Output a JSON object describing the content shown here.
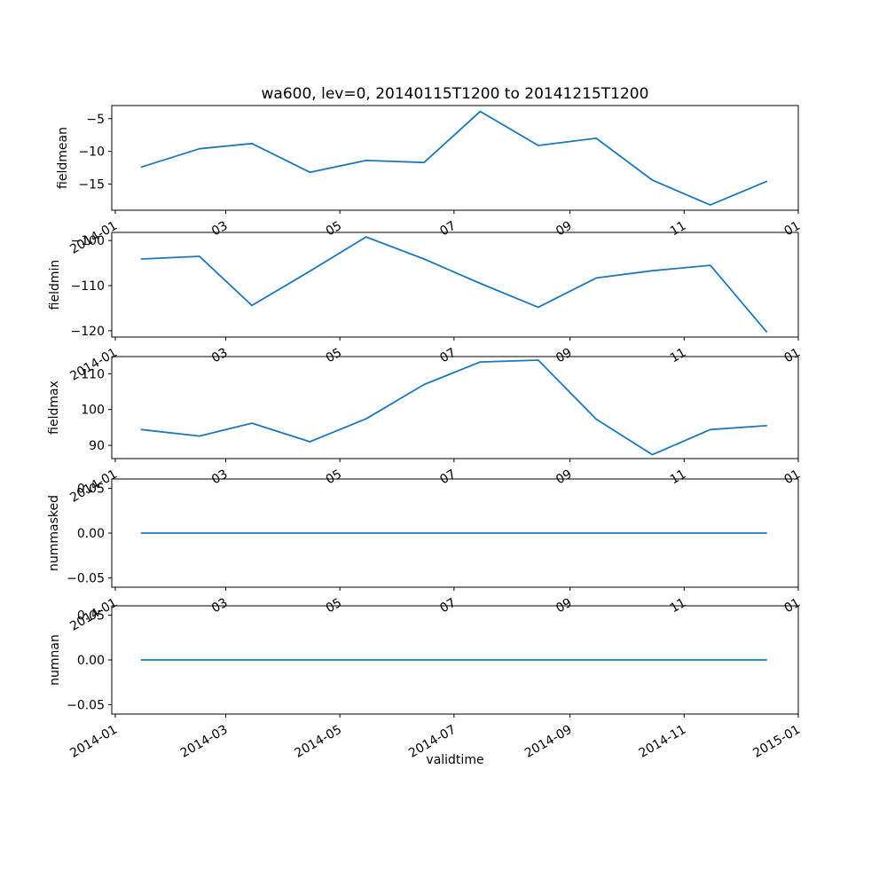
{
  "chart_data": {
    "type": "line",
    "title": "wa600, lev=0, 20140115T1200 to 20141215T1200",
    "xlabel": "validtime",
    "grid": false,
    "legend": null,
    "line_color": "#1f77b4",
    "x": [
      "2014-01-15",
      "2014-02-15",
      "2014-03-15",
      "2014-04-15",
      "2014-05-15",
      "2014-06-15",
      "2014-07-15",
      "2014-08-15",
      "2014-09-15",
      "2014-10-15",
      "2014-11-15",
      "2014-12-15"
    ],
    "x_ticks": [
      "2014-01",
      "2014-03",
      "2014-05",
      "2014-07",
      "2014-09",
      "2014-11",
      "2015-01"
    ],
    "x_tick_labels_bottom": [
      "2014-01",
      "2014-03",
      "2014-05",
      "2014-07",
      "2014-09",
      "2014-11",
      "2015-01"
    ],
    "x_tick_labels_inner": [
      "2014-01",
      "03",
      "05",
      "07",
      "09",
      "11",
      "01"
    ],
    "subplots": [
      {
        "ylabel": "fieldmean",
        "yticks": [
          -5,
          -10,
          -15
        ],
        "ytick_labels": [
          "−5",
          "−10",
          "−15"
        ],
        "ylim": [
          -19.0,
          -3.0
        ],
        "values": [
          -12.4,
          -9.6,
          -8.8,
          -13.2,
          -11.4,
          -11.7,
          -3.9,
          -9.1,
          -8.0,
          -14.4,
          -18.2,
          -14.6
        ]
      },
      {
        "ylabel": "fieldmin",
        "yticks": [
          -100,
          -110,
          -120
        ],
        "ytick_labels": [
          "−100",
          "−110",
          "−120"
        ],
        "ylim": [
          -121.4,
          -98.2
        ],
        "values": [
          -104.1,
          -103.5,
          -114.4,
          -106.8,
          -99.2,
          -104.1,
          -109.5,
          -114.8,
          -108.3,
          -106.7,
          -105.5,
          -120.2
        ]
      },
      {
        "ylabel": "fieldmax",
        "yticks": [
          110,
          100,
          90
        ],
        "ytick_labels": [
          "110",
          "100",
          "90"
        ],
        "ylim": [
          86.3,
          114.8
        ],
        "values": [
          94.4,
          92.6,
          96.2,
          91.0,
          97.4,
          107.0,
          113.3,
          113.8,
          97.3,
          87.4,
          94.4,
          95.5
        ]
      },
      {
        "ylabel": "nummasked",
        "yticks": [
          0.05,
          0.0,
          -0.05
        ],
        "ytick_labels": [
          "0.05",
          "0.00",
          "−0.05"
        ],
        "ylim": [
          -0.0605,
          0.0605
        ],
        "values": [
          0,
          0,
          0,
          0,
          0,
          0,
          0,
          0,
          0,
          0,
          0,
          0
        ]
      },
      {
        "ylabel": "numnan",
        "yticks": [
          0.05,
          0.0,
          -0.05
        ],
        "ytick_labels": [
          "0.05",
          "0.00",
          "−0.05"
        ],
        "ylim": [
          -0.0605,
          0.0605
        ],
        "values": [
          0,
          0,
          0,
          0,
          0,
          0,
          0,
          0,
          0,
          0,
          0,
          0
        ]
      }
    ]
  }
}
